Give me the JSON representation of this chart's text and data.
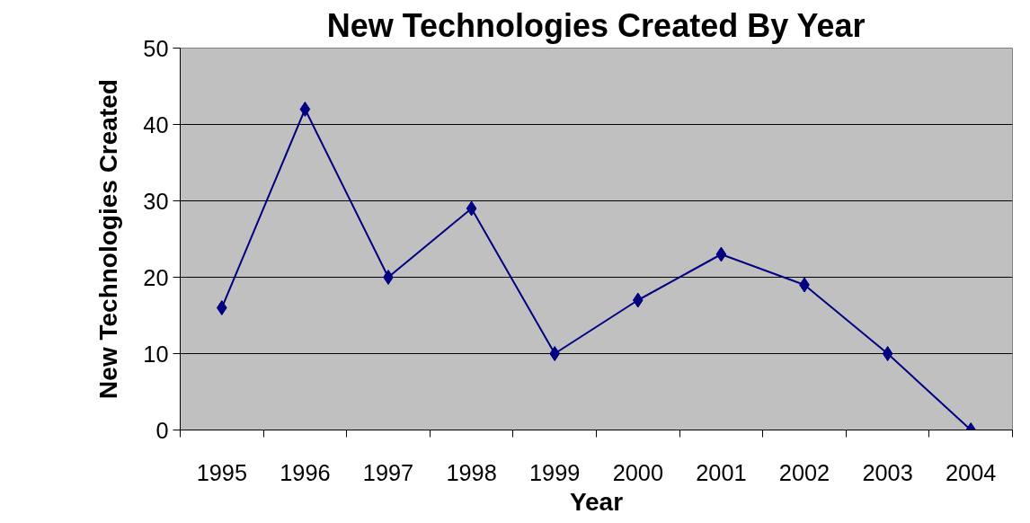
{
  "chart_data": {
    "type": "line",
    "title": "New Technologies Created By Year",
    "xlabel": "Year",
    "ylabel": "New Technologies Created",
    "categories": [
      "1995",
      "1996",
      "1997",
      "1998",
      "1999",
      "2000",
      "2001",
      "2002",
      "2003",
      "2004"
    ],
    "series": [
      {
        "color": "#000080",
        "values": [
          16,
          42,
          20,
          29,
          10,
          17,
          23,
          19,
          10,
          0
        ]
      }
    ],
    "ylim": [
      0,
      50
    ],
    "yticks": [
      0,
      10,
      20,
      30,
      40,
      50
    ],
    "grid": "y",
    "marker": "diamond",
    "line_style": "solid"
  }
}
